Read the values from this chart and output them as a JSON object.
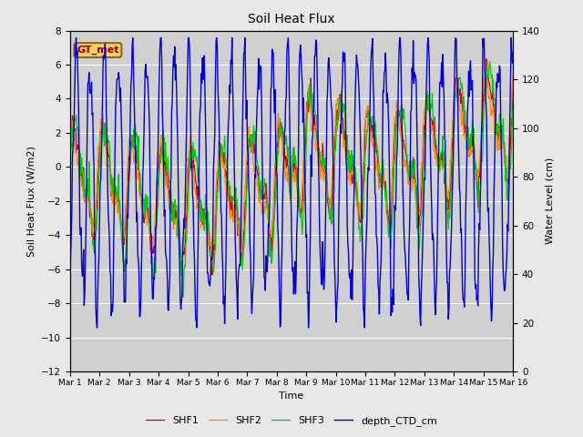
{
  "title": "Soil Heat Flux",
  "xlabel": "Time",
  "ylabel_left": "Soil Heat Flux (W/m2)",
  "ylabel_right": "Water Level (cm)",
  "ylim_left": [
    -12,
    8
  ],
  "ylim_right": [
    0,
    140
  ],
  "background_color": "#e8e8e8",
  "plot_bg_color": "#d0d0d0",
  "legend_label": "GT_met",
  "series_colors": {
    "SHF1": "#dd0000",
    "SHF2": "#ff8800",
    "SHF3": "#00cc00",
    "depth_CTD_cm": "#0000dd"
  },
  "xtick_labels": [
    "Mar 1",
    "Mar 2",
    "Mar 3",
    "Mar 4",
    "Mar 5",
    "Mar 6",
    "Mar 7",
    "Mar 8",
    "Mar 9",
    "Mar 10",
    "Mar 11",
    "Mar 12",
    "Mar 13",
    "Mar 14",
    "Mar 15",
    "Mar 16"
  ],
  "yticks_left": [
    -12,
    -10,
    -8,
    -6,
    -4,
    -2,
    0,
    2,
    4,
    6,
    8
  ],
  "yticks_right": [
    0,
    20,
    40,
    60,
    80,
    100,
    120,
    140
  ],
  "figsize": [
    6.4,
    4.8
  ],
  "dpi": 100
}
